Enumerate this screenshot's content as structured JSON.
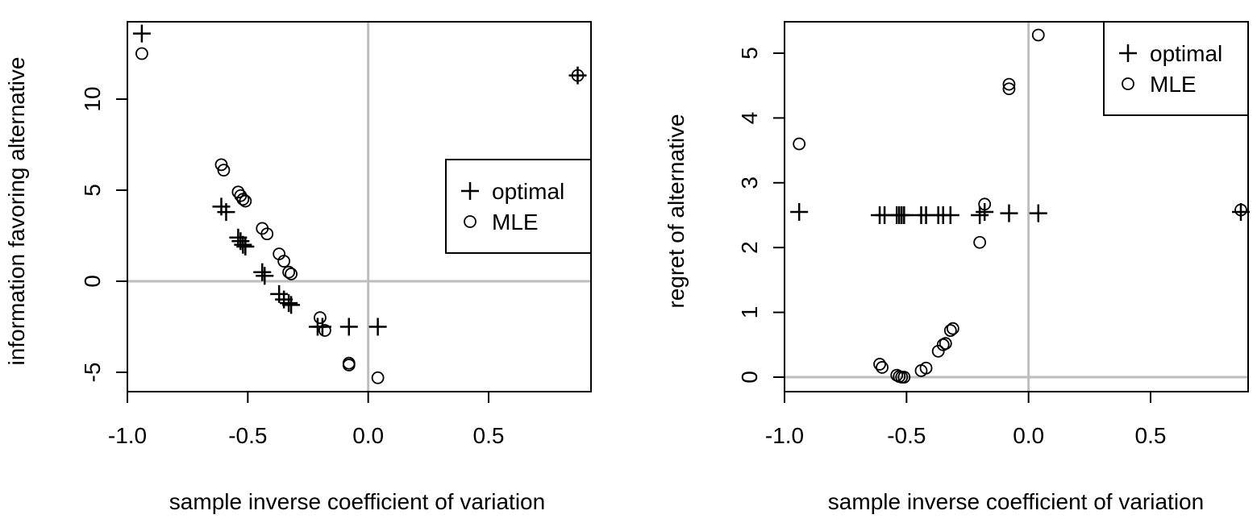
{
  "chart_data": [
    {
      "type": "scatter",
      "title": "",
      "xlabel": "sample inverse coefficient of variation",
      "ylabel": "information favoring alternative",
      "xlim": [
        -1.0,
        0.9
      ],
      "ylim": [
        -6,
        14
      ],
      "xticks": [
        -1.0,
        -0.5,
        0.0,
        0.5
      ],
      "xtick_labels": [
        "-1.0",
        "-0.5",
        "0.0",
        "0.5"
      ],
      "yticks": [
        -5,
        0,
        5,
        10
      ],
      "ytick_labels": [
        "-5",
        "0",
        "5",
        "10"
      ],
      "reference_lines": {
        "x": 0,
        "y": 0
      },
      "legend": {
        "position": "right",
        "entries": [
          "optimal",
          "MLE"
        ]
      },
      "series": [
        {
          "name": "optimal",
          "marker": "plus",
          "points": [
            [
              -0.94,
              13.6
            ],
            [
              0.87,
              11.3
            ],
            [
              -0.61,
              4.1
            ],
            [
              -0.59,
              3.8
            ],
            [
              -0.54,
              2.4
            ],
            [
              -0.53,
              2.2
            ],
            [
              -0.52,
              2.0
            ],
            [
              -0.51,
              1.9
            ],
            [
              -0.44,
              0.5
            ],
            [
              -0.43,
              0.3
            ],
            [
              -0.37,
              -0.7
            ],
            [
              -0.35,
              -1.0
            ],
            [
              -0.33,
              -1.2
            ],
            [
              -0.32,
              -1.3
            ],
            [
              -0.21,
              -2.5
            ],
            [
              -0.19,
              -2.5
            ],
            [
              -0.08,
              -2.5
            ],
            [
              0.04,
              -2.5
            ]
          ]
        },
        {
          "name": "MLE",
          "marker": "circle",
          "points": [
            [
              -0.94,
              12.5
            ],
            [
              0.87,
              11.3
            ],
            [
              -0.61,
              6.4
            ],
            [
              -0.6,
              6.1
            ],
            [
              -0.54,
              4.9
            ],
            [
              -0.53,
              4.7
            ],
            [
              -0.52,
              4.5
            ],
            [
              -0.51,
              4.4
            ],
            [
              -0.44,
              2.9
            ],
            [
              -0.42,
              2.6
            ],
            [
              -0.37,
              1.5
            ],
            [
              -0.35,
              1.1
            ],
            [
              -0.33,
              0.5
            ],
            [
              -0.32,
              0.4
            ],
            [
              -0.2,
              -2.0
            ],
            [
              -0.18,
              -2.7
            ],
            [
              -0.08,
              -4.5
            ],
            [
              -0.08,
              -4.6
            ],
            [
              0.04,
              -5.3
            ]
          ]
        }
      ]
    },
    {
      "type": "scatter",
      "title": "",
      "xlabel": "sample inverse coefficient of variation",
      "ylabel": "regret of alternative",
      "xlim": [
        -1.0,
        0.9
      ],
      "ylim": [
        -0.2,
        5.5
      ],
      "xticks": [
        -1.0,
        -0.5,
        0.0,
        0.5
      ],
      "xtick_labels": [
        "-1.0",
        "-0.5",
        "0.0",
        "0.5"
      ],
      "yticks": [
        0,
        1,
        2,
        3,
        4,
        5
      ],
      "ytick_labels": [
        "0",
        "1",
        "2",
        "3",
        "4",
        "5"
      ],
      "reference_lines": {
        "x": 0,
        "y": 0
      },
      "legend": {
        "position": "top-right",
        "entries": [
          "optimal",
          "MLE"
        ]
      },
      "series": [
        {
          "name": "optimal",
          "marker": "plus",
          "points": [
            [
              -0.94,
              2.55
            ],
            [
              0.87,
              2.55
            ],
            [
              -0.61,
              2.5
            ],
            [
              -0.59,
              2.5
            ],
            [
              -0.54,
              2.5
            ],
            [
              -0.53,
              2.5
            ],
            [
              -0.52,
              2.5
            ],
            [
              -0.51,
              2.5
            ],
            [
              -0.44,
              2.5
            ],
            [
              -0.42,
              2.5
            ],
            [
              -0.37,
              2.5
            ],
            [
              -0.35,
              2.5
            ],
            [
              -0.32,
              2.5
            ],
            [
              -0.2,
              2.5
            ],
            [
              -0.18,
              2.55
            ],
            [
              -0.08,
              2.53
            ],
            [
              0.04,
              2.53
            ]
          ]
        },
        {
          "name": "MLE",
          "marker": "circle",
          "points": [
            [
              -0.94,
              3.6
            ],
            [
              0.87,
              2.58
            ],
            [
              -0.61,
              0.2
            ],
            [
              -0.6,
              0.15
            ],
            [
              -0.54,
              0.03
            ],
            [
              -0.53,
              0.01
            ],
            [
              -0.52,
              0.0
            ],
            [
              -0.51,
              0.0
            ],
            [
              -0.44,
              0.1
            ],
            [
              -0.42,
              0.14
            ],
            [
              -0.37,
              0.4
            ],
            [
              -0.35,
              0.5
            ],
            [
              -0.34,
              0.52
            ],
            [
              -0.32,
              0.72
            ],
            [
              -0.31,
              0.75
            ],
            [
              -0.2,
              2.08
            ],
            [
              -0.18,
              2.67
            ],
            [
              -0.08,
              4.45
            ],
            [
              -0.08,
              4.52
            ],
            [
              0.04,
              5.28
            ]
          ]
        }
      ]
    }
  ]
}
